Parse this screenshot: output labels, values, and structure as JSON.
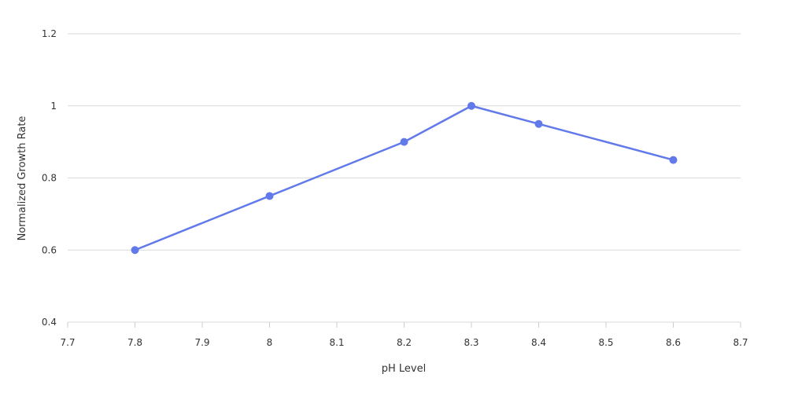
{
  "chart_data": {
    "type": "line",
    "title": "",
    "xlabel": "pH Level",
    "ylabel": "Normalized Growth Rate",
    "xlim": [
      7.7,
      8.7
    ],
    "ylim": [
      0.4,
      1.2
    ],
    "x_ticks": [
      "7.7",
      "7.8",
      "7.9",
      "8",
      "8.1",
      "8.2",
      "8.3",
      "8.4",
      "8.5",
      "8.6",
      "8.7"
    ],
    "y_ticks": [
      "0.4",
      "0.6",
      "0.8",
      "1",
      "1.2"
    ],
    "grid": "horizontal",
    "legend": "none",
    "series": [
      {
        "color": "#6279ea",
        "x": [
          7.8,
          8.0,
          8.2,
          8.3,
          8.4,
          8.6
        ],
        "y": [
          0.6,
          0.75,
          0.9,
          1.0,
          0.95,
          0.85
        ]
      }
    ]
  }
}
